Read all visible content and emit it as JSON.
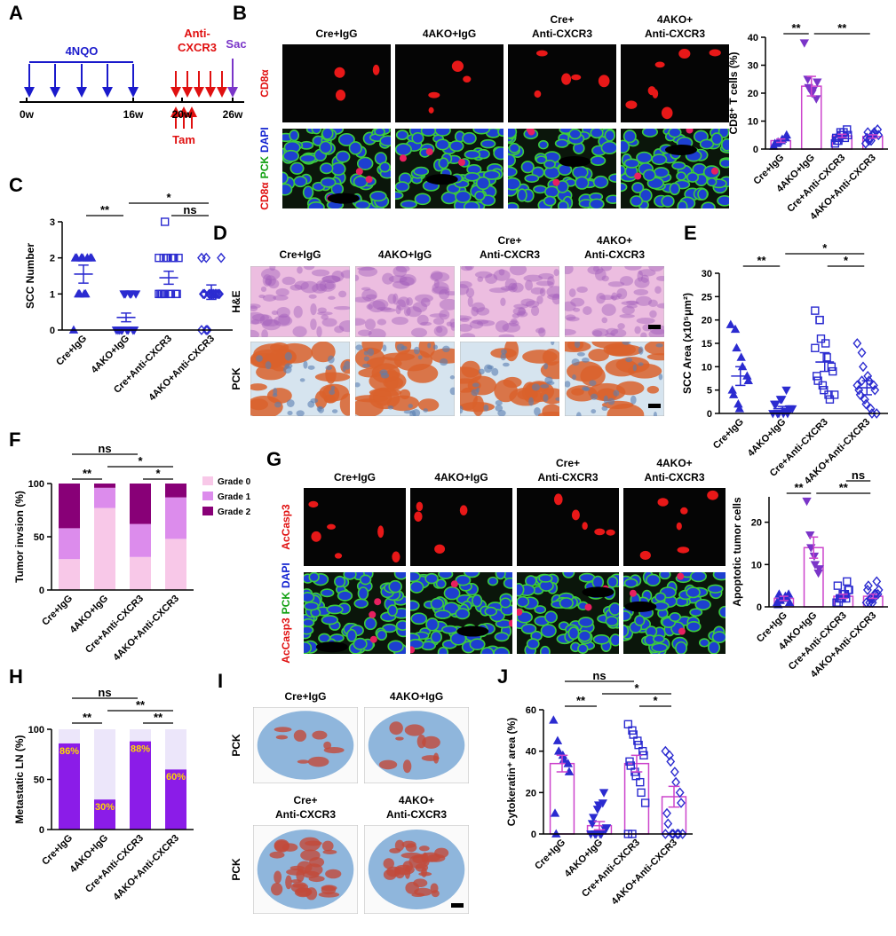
{
  "panel_labels": [
    "A",
    "B",
    "C",
    "D",
    "E",
    "F",
    "G",
    "H",
    "I",
    "J"
  ],
  "timeline": {
    "treatment": "4NQO",
    "antibody": [
      "Anti-",
      "CXCR3"
    ],
    "endpoint": "Sac",
    "induction": "Tam",
    "weeks": [
      "0w",
      "16w",
      "20w",
      "26w"
    ]
  },
  "micrographs": {
    "B": {
      "columns": [
        [
          "Cre+IgG"
        ],
        [
          "4AKO+IgG"
        ],
        [
          "Cre+",
          "Anti-CXCR3"
        ],
        [
          "4AKO+",
          "Anti-CXCR3"
        ]
      ],
      "rows": [
        [
          {
            "text": "CD8α",
            "color": "#e01010"
          }
        ],
        [
          {
            "text": "CD8α",
            "color": "#e01010"
          },
          {
            "text": "PCK",
            "color": "#10a010"
          },
          {
            "text": "DAPI",
            "color": "#1020d0"
          }
        ]
      ]
    },
    "D": {
      "columns": [
        [
          "Cre+IgG"
        ],
        [
          "4AKO+IgG"
        ],
        [
          "Cre+",
          "Anti-CXCR3"
        ],
        [
          "4AKO+",
          "Anti-CXCR3"
        ]
      ],
      "rows": [
        [
          {
            "text": "H&E",
            "color": "#000000"
          }
        ],
        [
          {
            "text": "PCK",
            "color": "#000000"
          }
        ]
      ]
    },
    "G": {
      "columns": [
        [
          "Cre+IgG"
        ],
        [
          "4AKO+IgG"
        ],
        [
          "Cre+",
          "Anti-CXCR3"
        ],
        [
          "4AKO+",
          "Anti-CXCR3"
        ]
      ],
      "rows": [
        [
          {
            "text": "AcCasp3",
            "color": "#e01010"
          }
        ],
        [
          {
            "text": "AcCasp3",
            "color": "#e01010"
          },
          {
            "text": "PCK",
            "color": "#10a010"
          },
          {
            "text": "DAPI",
            "color": "#1020d0"
          }
        ]
      ]
    },
    "I": {
      "panels": [
        [
          "Cre+IgG"
        ],
        [
          "4AKO+IgG"
        ],
        [
          "Cre+",
          "Anti-CXCR3"
        ],
        [
          "4AKO+",
          "Anti-CXCR3"
        ]
      ],
      "rows": [
        [
          {
            "text": "PCK",
            "color": "#000000"
          }
        ],
        [
          {
            "text": "PCK",
            "color": "#000000"
          }
        ]
      ]
    }
  },
  "chart_data": [
    {
      "type": "bar",
      "y_label": "CD8⁺ T cells (%)",
      "categories": [
        "Cre+IgG",
        "4AKO+IgG",
        "Cre+Anti-CXCR3",
        "4AKO+Anti-CXCR3"
      ],
      "values": [
        3,
        22.5,
        4.7,
        4.5
      ],
      "errors": [
        0.6,
        3.5,
        0.6,
        0.6
      ],
      "points": [
        [
          1,
          2,
          2.5,
          3,
          3.5,
          4,
          5,
          2
        ],
        [
          38,
          25,
          22,
          20,
          21,
          18,
          24
        ],
        [
          2,
          3,
          4,
          5,
          6,
          7,
          5,
          4,
          3,
          6,
          5,
          4
        ],
        [
          2,
          3,
          4,
          5,
          6,
          7,
          5,
          4,
          6,
          3,
          5
        ]
      ],
      "ylim": [
        0,
        40
      ],
      "yticks": [
        0,
        10,
        20,
        30,
        40
      ],
      "bar_color": "#cc44cc",
      "marker_colors": [
        "#2b2bd0",
        "#7a35c8",
        "#2b2bd0",
        "#2b2bd0"
      ],
      "markers": [
        "triangle",
        "inverted-triangle",
        "square",
        "diamond"
      ],
      "marker_fill": [
        true,
        true,
        false,
        false
      ],
      "comparisons": [
        {
          "between": [
            0,
            1
          ],
          "label": "**"
        },
        {
          "between": [
            1,
            3
          ],
          "label": "**"
        }
      ]
    },
    {
      "type": "strip",
      "y_label": "SCC Number",
      "categories": [
        "Cre+IgG",
        "4AKO+IgG",
        "Cre+Anti-CXCR3",
        "4AKO+Anti-CXCR3"
      ],
      "values": [
        1.55,
        0.35,
        1.45,
        1.05
      ],
      "errors": [
        0.25,
        0.12,
        0.18,
        0.2
      ],
      "points": [
        [
          0,
          1,
          1,
          1,
          1,
          2,
          2,
          2,
          2,
          2,
          2,
          2
        ],
        [
          0,
          0,
          0,
          0,
          0,
          0,
          0,
          0,
          0,
          1,
          1,
          1,
          1,
          1
        ],
        [
          1,
          1,
          1,
          1,
          1,
          1,
          1,
          1,
          1,
          2,
          2,
          2,
          2,
          2,
          2,
          2,
          3
        ],
        [
          0,
          0,
          0,
          1,
          1,
          1,
          1,
          1,
          1,
          1,
          1,
          1,
          1,
          2,
          2,
          2
        ]
      ],
      "ylim": [
        0,
        3
      ],
      "yticks": [
        0,
        1,
        2,
        3
      ],
      "line_color": "#2b2bd0",
      "marker_colors": [
        "#2b2bd0",
        "#2b2bd0",
        "#2b2bd0",
        "#2b2bd0"
      ],
      "markers": [
        "triangle",
        "inverted-triangle",
        "square",
        "diamond"
      ],
      "marker_fill": [
        true,
        true,
        false,
        false
      ],
      "comparisons": [
        {
          "between": [
            0,
            1
          ],
          "label": "**"
        },
        {
          "between": [
            2,
            3
          ],
          "label": "ns"
        },
        {
          "between": [
            1,
            3
          ],
          "label": "*"
        }
      ]
    },
    {
      "type": "strip",
      "y_label": "SCC Area (x10⁵μm²)",
      "categories": [
        "Cre+IgG",
        "4AKO+IgG",
        "Cre+Anti-CXCR3",
        "4AKO+Anti-CXCR3"
      ],
      "values": [
        8,
        1,
        11,
        5.5
      ],
      "errors": [
        2,
        0.5,
        2,
        1.5
      ],
      "points": [
        [
          19,
          18,
          14,
          12,
          10,
          8,
          7,
          5,
          4,
          2,
          1
        ],
        [
          0,
          0,
          0,
          0,
          0.5,
          1,
          1,
          2,
          2,
          3,
          3,
          5,
          0,
          1
        ],
        [
          22,
          20,
          16,
          15,
          12,
          10,
          9,
          8,
          7,
          6,
          5,
          4,
          3,
          4,
          14,
          20
        ],
        [
          15,
          13,
          10,
          8,
          7,
          6,
          5,
          5,
          4,
          3,
          2,
          1,
          0,
          0,
          6,
          7
        ]
      ],
      "ylim": [
        0,
        30
      ],
      "yticks": [
        0,
        5,
        10,
        15,
        20,
        25,
        30
      ],
      "line_color": "#2b2bd0",
      "marker_colors": [
        "#2b2bd0",
        "#2b2bd0",
        "#2b2bd0",
        "#2b2bd0"
      ],
      "markers": [
        "triangle",
        "inverted-triangle",
        "square",
        "diamond"
      ],
      "marker_fill": [
        true,
        true,
        false,
        false
      ],
      "comparisons": [
        {
          "between": [
            0,
            1
          ],
          "label": "**"
        },
        {
          "between": [
            2,
            3
          ],
          "label": "*"
        },
        {
          "between": [
            1,
            3
          ],
          "label": "*"
        }
      ]
    },
    {
      "type": "stackedbar",
      "y_label": "Tumor invsion (%)",
      "categories": [
        "Cre+IgG",
        "4AKO+IgG",
        "Cre+Anti-CXCR3",
        "4AKO+Anti-CXCR3"
      ],
      "series": [
        {
          "name": "Grade 0",
          "color": "#f8c8e8",
          "values": [
            29,
            77,
            31,
            48
          ]
        },
        {
          "name": "Grade 1",
          "color": "#dc8cec",
          "values": [
            29,
            19,
            31,
            39
          ]
        },
        {
          "name": "Grade 2",
          "color": "#880077",
          "values": [
            42,
            4,
            38,
            13
          ]
        }
      ],
      "ylim": [
        0,
        100
      ],
      "yticks": [
        0,
        50,
        100
      ],
      "legend": "right",
      "comparisons": [
        {
          "between": [
            0,
            1
          ],
          "label": "**"
        },
        {
          "between": [
            2,
            3
          ],
          "label": "*"
        },
        {
          "between": [
            1,
            3
          ],
          "label": "*"
        },
        {
          "between": [
            0,
            2
          ],
          "label": "ns"
        }
      ]
    },
    {
      "type": "bar",
      "y_label": "Apoptotic tumor cells",
      "categories": [
        "Cre+IgG",
        "4AKO+IgG",
        "Cre+Anti-CXCR3",
        "4AKO+Anti-CXCR3"
      ],
      "values": [
        2,
        14,
        2.5,
        2.5
      ],
      "errors": [
        0.5,
        2.5,
        0.5,
        0.5
      ],
      "points": [
        [
          1,
          1.5,
          2,
          2,
          2.5,
          3,
          1,
          0.5,
          3
        ],
        [
          25,
          17,
          14,
          12,
          10,
          8,
          9
        ],
        [
          1,
          2,
          2,
          3,
          3,
          4,
          4,
          5,
          1,
          2,
          3,
          2,
          6
        ],
        [
          1,
          1,
          2,
          2,
          3,
          3,
          4,
          4,
          5,
          2,
          1,
          3,
          6
        ]
      ],
      "ylim": [
        0,
        26
      ],
      "yticks": [
        0,
        10,
        20
      ],
      "bar_color": "#cc44cc",
      "marker_colors": [
        "#2b2bd0",
        "#7a35c8",
        "#2b2bd0",
        "#2b2bd0"
      ],
      "markers": [
        "triangle",
        "inverted-triangle",
        "square",
        "diamond"
      ],
      "marker_fill": [
        true,
        true,
        false,
        false
      ],
      "comparisons": [
        {
          "between": [
            0,
            1
          ],
          "label": "**"
        },
        {
          "between": [
            1,
            3
          ],
          "label": "**"
        },
        {
          "between": [
            2,
            3
          ],
          "label": "ns"
        }
      ]
    },
    {
      "type": "stackedbar",
      "y_label": "Metastatic LN (%)",
      "categories": [
        "Cre+IgG",
        "4AKO+IgG",
        "Cre+Anti-CXCR3",
        "4AKO+Anti-CXCR3"
      ],
      "series": [
        {
          "color": "#8b1ce8",
          "values": [
            86,
            30,
            88,
            60
          ],
          "value_labels": [
            "86%",
            "30%",
            "88%",
            "60%"
          ],
          "label_color": "#ffd700"
        },
        {
          "color": "#ece6fa",
          "values": [
            14,
            70,
            12,
            40
          ]
        }
      ],
      "ylim": [
        0,
        100
      ],
      "yticks": [
        0,
        50,
        100
      ],
      "comparisons": [
        {
          "between": [
            0,
            1
          ],
          "label": "**"
        },
        {
          "between": [
            2,
            3
          ],
          "label": "**"
        },
        {
          "between": [
            1,
            3
          ],
          "label": "**"
        },
        {
          "between": [
            0,
            2
          ],
          "label": "ns"
        }
      ]
    },
    {
      "type": "bar",
      "y_label": "Cytokeratin⁺ area (%)",
      "categories": [
        "Cre+IgG",
        "4AKO+IgG",
        "Cre+Anti-CXCR3",
        "4AKO+Anti-CXCR3"
      ],
      "values": [
        34,
        4,
        34,
        18
      ],
      "errors": [
        4,
        2,
        4,
        5
      ],
      "points": [
        [
          55,
          45,
          40,
          38,
          36,
          34,
          30,
          10,
          0
        ],
        [
          0,
          0,
          0,
          0,
          0,
          2,
          3,
          5,
          8,
          12,
          14,
          15,
          20
        ],
        [
          53,
          50,
          48,
          45,
          43,
          40,
          38,
          35,
          33,
          30,
          28,
          25,
          20,
          15,
          0,
          0
        ],
        [
          40,
          38,
          35,
          30,
          25,
          20,
          15,
          10,
          5,
          0,
          0,
          0,
          0,
          0,
          0
        ]
      ],
      "ylim": [
        0,
        60
      ],
      "yticks": [
        0,
        20,
        40,
        60
      ],
      "bar_color": "#cc44cc",
      "marker_colors": [
        "#2b2bd0",
        "#2b2bd0",
        "#2b2bd0",
        "#2b2bd0"
      ],
      "markers": [
        "triangle",
        "inverted-triangle",
        "square",
        "diamond"
      ],
      "marker_fill": [
        true,
        true,
        false,
        false
      ],
      "comparisons": [
        {
          "between": [
            0,
            1
          ],
          "label": "**"
        },
        {
          "between": [
            2,
            3
          ],
          "label": "*"
        },
        {
          "between": [
            1,
            3
          ],
          "label": "*"
        },
        {
          "between": [
            0,
            2
          ],
          "label": "ns"
        }
      ]
    }
  ]
}
